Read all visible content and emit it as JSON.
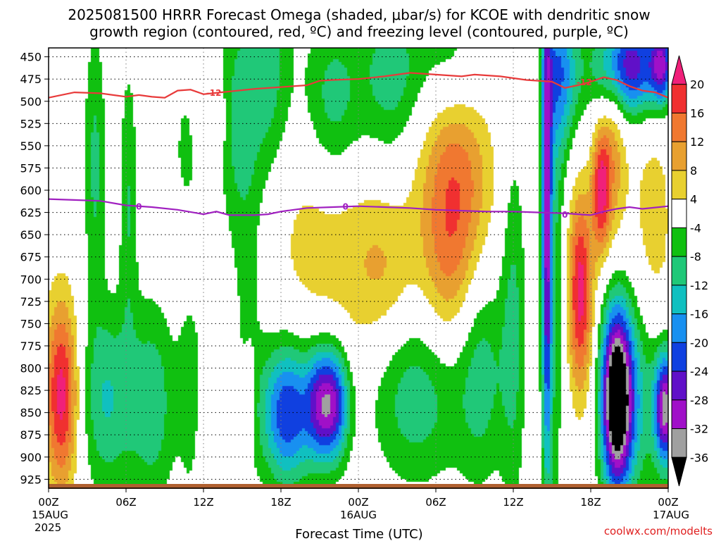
{
  "title_line1": "2025081500 HRRR Forecast Omega (shaded, μbar/s) for KCOE with dendritic snow",
  "title_line2": "growth region (contoured, red, ºC) and freezing level (contoured, purple, ºC)",
  "xlabel": "Forecast Time (UTC)",
  "credit": "coolwx.com/modelts",
  "chart_data": {
    "type": "heatmap",
    "title": "2025081500 HRRR Forecast Omega (shaded, μbar/s) for KCOE with dendritic snow growth region (contoured, red, ºC) and freezing level (contoured, purple, ºC)",
    "xlabel": "Forecast Time (UTC)",
    "ylabel": "",
    "x_range_hours": [
      0,
      48
    ],
    "y_range_hPa": [
      440,
      935
    ],
    "y_ticks": [
      450,
      475,
      500,
      525,
      550,
      575,
      600,
      625,
      650,
      675,
      700,
      725,
      750,
      775,
      800,
      825,
      850,
      875,
      900,
      925
    ],
    "x_ticks": [
      {
        "hour": 0,
        "label": "00Z",
        "sub": "15AUG",
        "sub2": "2025"
      },
      {
        "hour": 6,
        "label": "06Z",
        "sub": "",
        "sub2": ""
      },
      {
        "hour": 12,
        "label": "12Z",
        "sub": "",
        "sub2": ""
      },
      {
        "hour": 18,
        "label": "18Z",
        "sub": "",
        "sub2": ""
      },
      {
        "hour": 24,
        "label": "00Z",
        "sub": "16AUG",
        "sub2": ""
      },
      {
        "hour": 30,
        "label": "06Z",
        "sub": "",
        "sub2": ""
      },
      {
        "hour": 36,
        "label": "12Z",
        "sub": "",
        "sub2": ""
      },
      {
        "hour": 42,
        "label": "18Z",
        "sub": "",
        "sub2": ""
      },
      {
        "hour": 48,
        "label": "00Z",
        "sub": "17AUG",
        "sub2": ""
      }
    ],
    "colorbar": {
      "levels": [
        20,
        16,
        12,
        8,
        4,
        -4,
        -8,
        -12,
        -16,
        -20,
        -24,
        -28,
        -32,
        -36
      ],
      "colors": [
        "#f0207a",
        "#f03030",
        "#f07830",
        "#e8a030",
        "#e8d030",
        "#ffffff",
        "#10c010",
        "#20c878",
        "#10c0c0",
        "#1890f0",
        "#1040e0",
        "#6010c8",
        "#a010c8",
        "#a0a0a0",
        "#000000"
      ]
    },
    "series": [
      {
        "name": "-12",
        "color": "#e83a3a",
        "points": [
          [
            0,
            496
          ],
          [
            2,
            490
          ],
          [
            4,
            491
          ],
          [
            6,
            495
          ],
          [
            7,
            493
          ],
          [
            8,
            495
          ],
          [
            9,
            496
          ],
          [
            10,
            488
          ],
          [
            11,
            487
          ],
          [
            12,
            492
          ],
          [
            14,
            489
          ],
          [
            16,
            486
          ],
          [
            18,
            484
          ],
          [
            20,
            482
          ],
          [
            21,
            477
          ],
          [
            22,
            476
          ],
          [
            24,
            475
          ],
          [
            26,
            472
          ],
          [
            28,
            468
          ],
          [
            30,
            470
          ],
          [
            32,
            472
          ],
          [
            33,
            470
          ],
          [
            35,
            472
          ],
          [
            37,
            476
          ],
          [
            39,
            478
          ],
          [
            40,
            485
          ],
          [
            41,
            482
          ],
          [
            42,
            478
          ],
          [
            43,
            473
          ],
          [
            44,
            476
          ],
          [
            45,
            483
          ],
          [
            46,
            488
          ],
          [
            47,
            490
          ],
          [
            48,
            496
          ]
        ]
      },
      {
        "name": "0",
        "color": "#a020c0",
        "points": [
          [
            0,
            610
          ],
          [
            2,
            611
          ],
          [
            4,
            612
          ],
          [
            6,
            617
          ],
          [
            8,
            619
          ],
          [
            10,
            622
          ],
          [
            12,
            627
          ],
          [
            13,
            624
          ],
          [
            14,
            628
          ],
          [
            16,
            628
          ],
          [
            17,
            627
          ],
          [
            18,
            624
          ],
          [
            19,
            622
          ],
          [
            20,
            620
          ],
          [
            22,
            619
          ],
          [
            24,
            618
          ],
          [
            26,
            619
          ],
          [
            28,
            620
          ],
          [
            30,
            622
          ],
          [
            32,
            623
          ],
          [
            34,
            624
          ],
          [
            36,
            624
          ],
          [
            38,
            625
          ],
          [
            40,
            626
          ],
          [
            41,
            627
          ],
          [
            42,
            628
          ],
          [
            43,
            624
          ],
          [
            44,
            621
          ],
          [
            45,
            619
          ],
          [
            46,
            621
          ],
          [
            48,
            618
          ]
        ]
      }
    ],
    "contour_labels": [
      {
        "series": "-12",
        "text": "-12",
        "at": [
          12.8,
          490
        ]
      },
      {
        "series": "-12",
        "text": "-12",
        "at": [
          41.5,
          478
        ]
      },
      {
        "series": "0",
        "text": "0",
        "at": [
          7.0,
          618
        ]
      },
      {
        "series": "0",
        "text": "0",
        "at": [
          23.0,
          618
        ]
      },
      {
        "series": "0",
        "text": "0",
        "at": [
          40.0,
          627
        ]
      }
    ],
    "ground_color": "#b06030",
    "blobs": [
      {
        "x": 1.0,
        "p": 830,
        "sx": 0.9,
        "sp": 75,
        "a": 22
      },
      {
        "x": 3.6,
        "p": 570,
        "sx": 0.6,
        "sp": 110,
        "a": -9
      },
      {
        "x": 4.5,
        "p": 835,
        "sx": 1.4,
        "sp": 75,
        "a": -12
      },
      {
        "x": 6.2,
        "p": 610,
        "sx": 0.5,
        "sp": 110,
        "a": -8
      },
      {
        "x": 8.0,
        "p": 840,
        "sx": 1.3,
        "sp": 80,
        "a": -11
      },
      {
        "x": 11.0,
        "p": 760,
        "sx": 0.7,
        "sp": 150,
        "a": -6
      },
      {
        "x": 11.0,
        "p": 680,
        "sx": 0.8,
        "sp": 45,
        "a": 6
      },
      {
        "x": 12.4,
        "p": 520,
        "sx": 1.3,
        "sp": 28,
        "a": 4
      },
      {
        "x": 10.6,
        "p": 545,
        "sx": 0.45,
        "sp": 35,
        "a": -6
      },
      {
        "x": 14.5,
        "p": 520,
        "sx": 1.0,
        "sp": 90,
        "a": -8
      },
      {
        "x": 15.5,
        "p": 720,
        "sx": 0.9,
        "sp": 140,
        "a": -5
      },
      {
        "x": 15.6,
        "p": 830,
        "sx": 0.35,
        "sp": 40,
        "a": 5
      },
      {
        "x": 17.0,
        "p": 470,
        "sx": 1.3,
        "sp": 90,
        "a": -10
      },
      {
        "x": 18.5,
        "p": 850,
        "sx": 1.4,
        "sp": 55,
        "a": -24
      },
      {
        "x": 20.0,
        "p": 650,
        "sx": 2.2,
        "sp": 90,
        "a": 5
      },
      {
        "x": 21.0,
        "p": 840,
        "sx": 0.8,
        "sp": 45,
        "a": -20
      },
      {
        "x": 22.0,
        "p": 500,
        "sx": 1.6,
        "sp": 70,
        "a": -10
      },
      {
        "x": 22.2,
        "p": 840,
        "sx": 0.8,
        "sp": 45,
        "a": -22
      },
      {
        "x": 24.5,
        "p": 680,
        "sx": 2.3,
        "sp": 80,
        "a": 6
      },
      {
        "x": 26.3,
        "p": 700,
        "sx": 1.5,
        "sp": 60,
        "a": 4
      },
      {
        "x": 26.5,
        "p": 470,
        "sx": 1.7,
        "sp": 70,
        "a": -10
      },
      {
        "x": 28.5,
        "p": 830,
        "sx": 2.5,
        "sp": 70,
        "a": -11
      },
      {
        "x": 31.5,
        "p": 590,
        "sx": 2.0,
        "sp": 95,
        "a": 15
      },
      {
        "x": 31.0,
        "p": 700,
        "sx": 1.5,
        "sp": 70,
        "a": 6
      },
      {
        "x": 31.3,
        "p": 460,
        "sx": 2.0,
        "sp": 50,
        "a": -9
      },
      {
        "x": 33.5,
        "p": 800,
        "sx": 1.3,
        "sp": 90,
        "a": -10
      },
      {
        "x": 36.0,
        "p": 750,
        "sx": 0.7,
        "sp": 150,
        "a": -9
      },
      {
        "x": 38.6,
        "p": 640,
        "sx": 0.28,
        "sp": 200,
        "a": -26
      },
      {
        "x": 39.2,
        "p": 640,
        "sx": 0.6,
        "sp": 250,
        "a": -8
      },
      {
        "x": 39.8,
        "p": 470,
        "sx": 1.0,
        "sp": 60,
        "a": -16
      },
      {
        "x": 41.2,
        "p": 715,
        "sx": 0.7,
        "sp": 80,
        "a": 22
      },
      {
        "x": 42.8,
        "p": 600,
        "sx": 0.5,
        "sp": 50,
        "a": 20
      },
      {
        "x": 43.8,
        "p": 550,
        "sx": 0.7,
        "sp": 80,
        "a": 10
      },
      {
        "x": 44.0,
        "p": 835,
        "sx": 0.8,
        "sp": 70,
        "a": -40
      },
      {
        "x": 45.2,
        "p": 830,
        "sx": 1.5,
        "sp": 80,
        "a": -14
      },
      {
        "x": 45.0,
        "p": 460,
        "sx": 1.8,
        "sp": 40,
        "a": -28
      },
      {
        "x": 46.8,
        "p": 650,
        "sx": 1.3,
        "sp": 120,
        "a": 6
      },
      {
        "x": 47.8,
        "p": 845,
        "sx": 0.6,
        "sp": 45,
        "a": -33
      },
      {
        "x": 47.5,
        "p": 460,
        "sx": 0.6,
        "sp": 30,
        "a": -22
      }
    ]
  }
}
